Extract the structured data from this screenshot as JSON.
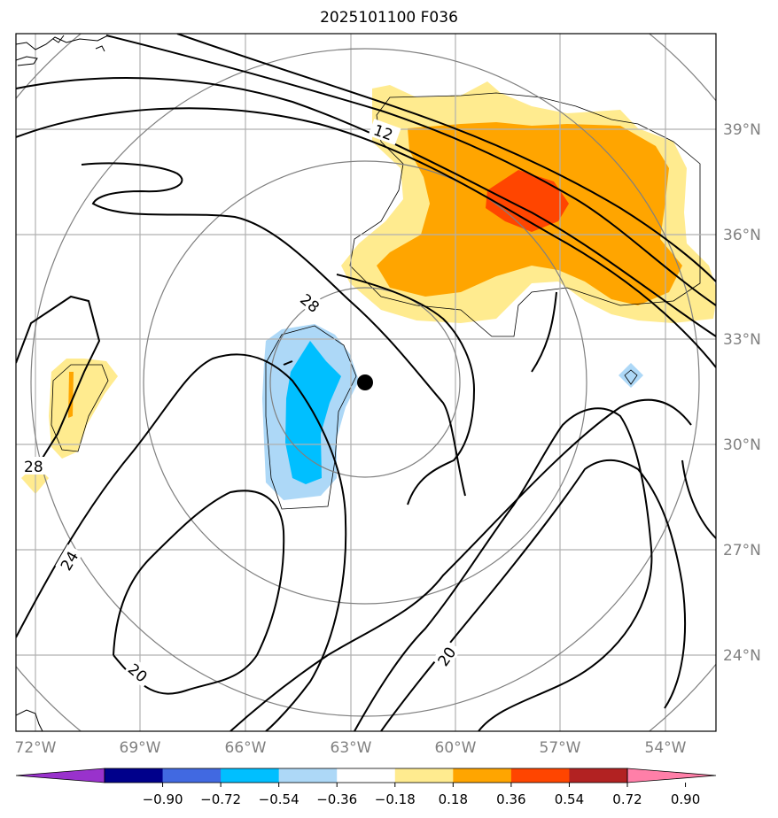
{
  "title": "2025101100 F036",
  "map": {
    "lon_labels": [
      "72°W",
      "69°W",
      "66°W",
      "63°W",
      "60°W",
      "57°W",
      "54°W"
    ],
    "lat_labels": [
      "39°N",
      "36°N",
      "33°N",
      "30°N",
      "27°N",
      "24°N"
    ],
    "contour_labels": {
      "c12": "12",
      "c28_center": "28",
      "c28_west": "28",
      "c24": "24",
      "c20_south": "20",
      "c20_east": "20"
    },
    "storm_center_marker": "filled-circle"
  },
  "colorbar": {
    "ticks": [
      "−0.90",
      "−0.72",
      "−0.54",
      "−0.36",
      "−0.18",
      "0.18",
      "0.36",
      "0.54",
      "0.72",
      "0.90"
    ],
    "colors": [
      "#9932cc",
      "#00008b",
      "#4169e1",
      "#00bfff",
      "#add8f7",
      "#ffffff",
      "#ffeb8f",
      "#ffa500",
      "#ff4500",
      "#b22222",
      "#ff7fa8"
    ]
  },
  "chart_data": {
    "type": "heatmap",
    "title": "2025101100 F036",
    "xlabel": "",
    "ylabel": "",
    "x_range_deg": [
      "72°W",
      "53°W"
    ],
    "y_range_deg": [
      "22°N",
      "41°N"
    ],
    "color_levels": [
      -0.9,
      -0.72,
      -0.54,
      -0.36,
      -0.18,
      0.18,
      0.36,
      0.54,
      0.72,
      0.9
    ],
    "contour_values_labeled": [
      12,
      20,
      20,
      24,
      28,
      28
    ],
    "grid": true
  }
}
